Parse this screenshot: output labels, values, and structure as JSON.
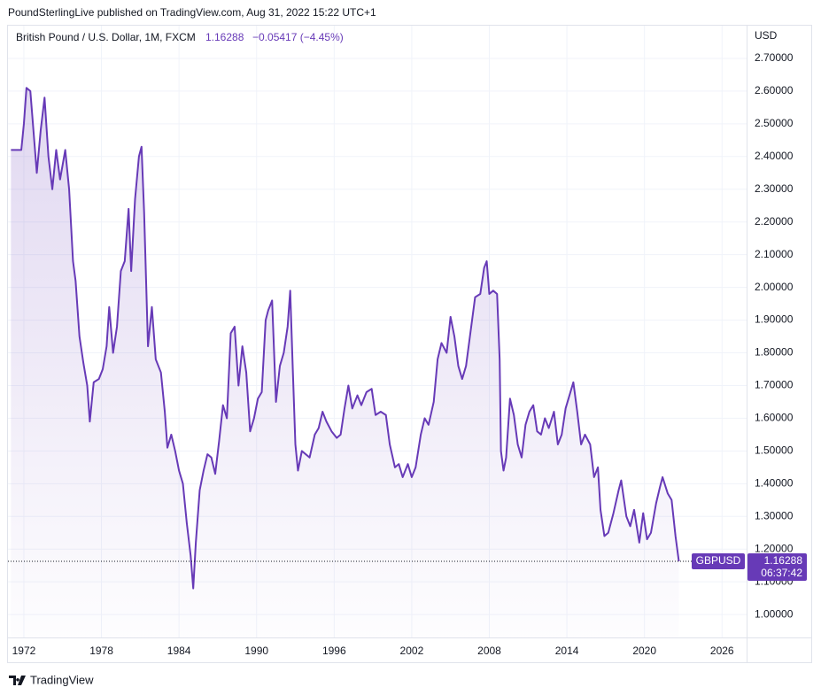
{
  "header": {
    "text": "PoundSterlingLive published on TradingView.com, Aug 31, 2022 15:22 UTC+1"
  },
  "footer": {
    "brand": "TradingView"
  },
  "chart_data": {
    "type": "area",
    "title": "British Pound / U.S. Dollar, 1M, FXCM",
    "change": "−0.05417 (−4.45%)",
    "countdown": "06:37:42",
    "y_axis_label": "USD",
    "grid": true,
    "x": [
      1971.0,
      1971.8,
      1972.0,
      1972.2,
      1972.5,
      1972.8,
      1973.0,
      1973.3,
      1973.6,
      1973.9,
      1974.2,
      1974.5,
      1974.8,
      1975.2,
      1975.5,
      1975.8,
      1976.0,
      1976.3,
      1976.6,
      1976.9,
      1977.1,
      1977.4,
      1977.8,
      1978.1,
      1978.4,
      1978.6,
      1978.9,
      1979.2,
      1979.5,
      1979.8,
      1980.1,
      1980.3,
      1980.6,
      1980.9,
      1981.1,
      1981.3,
      1981.6,
      1981.9,
      1982.2,
      1982.6,
      1982.9,
      1983.1,
      1983.4,
      1983.7,
      1984.0,
      1984.3,
      1984.6,
      1984.9,
      1985.1,
      1985.3,
      1985.6,
      1985.9,
      1986.2,
      1986.5,
      1986.8,
      1987.1,
      1987.4,
      1987.7,
      1988.0,
      1988.3,
      1988.6,
      1988.9,
      1989.2,
      1989.5,
      1989.8,
      1990.1,
      1990.4,
      1990.7,
      1990.9,
      1991.2,
      1991.5,
      1991.8,
      1992.1,
      1992.4,
      1992.6,
      1992.8,
      1993.0,
      1993.2,
      1993.5,
      1993.8,
      1994.1,
      1994.5,
      1994.8,
      1995.1,
      1995.4,
      1995.8,
      1996.2,
      1996.5,
      1996.8,
      1997.1,
      1997.4,
      1997.8,
      1998.1,
      1998.5,
      1998.9,
      1999.2,
      1999.6,
      2000.0,
      2000.3,
      2000.7,
      2001.0,
      2001.3,
      2001.7,
      2002.0,
      2002.3,
      2002.7,
      2003.0,
      2003.3,
      2003.7,
      2004.0,
      2004.3,
      2004.7,
      2005.0,
      2005.3,
      2005.6,
      2005.9,
      2006.2,
      2006.5,
      2006.9,
      2007.3,
      2007.6,
      2007.8,
      2008.0,
      2008.3,
      2008.6,
      2008.8,
      2008.9,
      2009.1,
      2009.3,
      2009.6,
      2009.9,
      2010.2,
      2010.5,
      2010.8,
      2011.1,
      2011.4,
      2011.7,
      2012.0,
      2012.3,
      2012.6,
      2013.0,
      2013.3,
      2013.6,
      2013.9,
      2014.2,
      2014.5,
      2014.8,
      2015.1,
      2015.4,
      2015.8,
      2016.1,
      2016.4,
      2016.6,
      2016.9,
      2017.2,
      2017.6,
      2018.0,
      2018.2,
      2018.6,
      2018.9,
      2019.2,
      2019.6,
      2019.9,
      2020.2,
      2020.5,
      2020.9,
      2021.2,
      2021.4,
      2021.8,
      2022.1,
      2022.4,
      2022.66
    ],
    "series": [
      {
        "name": "GBPUSD",
        "color": "#673ab7",
        "values": [
          2.42,
          2.42,
          2.5,
          2.61,
          2.6,
          2.45,
          2.35,
          2.48,
          2.58,
          2.4,
          2.3,
          2.42,
          2.33,
          2.42,
          2.3,
          2.08,
          2.02,
          1.85,
          1.77,
          1.7,
          1.59,
          1.71,
          1.72,
          1.75,
          1.82,
          1.94,
          1.8,
          1.88,
          2.05,
          2.08,
          2.24,
          2.05,
          2.27,
          2.4,
          2.43,
          2.23,
          1.82,
          1.94,
          1.78,
          1.74,
          1.62,
          1.51,
          1.55,
          1.5,
          1.44,
          1.4,
          1.28,
          1.18,
          1.08,
          1.22,
          1.38,
          1.44,
          1.49,
          1.48,
          1.43,
          1.53,
          1.64,
          1.6,
          1.86,
          1.88,
          1.7,
          1.82,
          1.74,
          1.56,
          1.6,
          1.66,
          1.68,
          1.9,
          1.93,
          1.96,
          1.65,
          1.76,
          1.8,
          1.88,
          1.99,
          1.75,
          1.52,
          1.44,
          1.5,
          1.49,
          1.48,
          1.55,
          1.57,
          1.62,
          1.59,
          1.56,
          1.54,
          1.55,
          1.63,
          1.7,
          1.63,
          1.67,
          1.64,
          1.68,
          1.69,
          1.61,
          1.62,
          1.61,
          1.52,
          1.45,
          1.46,
          1.42,
          1.46,
          1.42,
          1.45,
          1.55,
          1.6,
          1.58,
          1.65,
          1.78,
          1.83,
          1.8,
          1.91,
          1.85,
          1.76,
          1.72,
          1.76,
          1.85,
          1.97,
          1.98,
          2.06,
          2.08,
          1.98,
          1.99,
          1.98,
          1.78,
          1.5,
          1.44,
          1.48,
          1.66,
          1.61,
          1.52,
          1.48,
          1.58,
          1.62,
          1.64,
          1.56,
          1.55,
          1.6,
          1.57,
          1.62,
          1.52,
          1.55,
          1.63,
          1.67,
          1.71,
          1.62,
          1.52,
          1.55,
          1.52,
          1.42,
          1.45,
          1.32,
          1.24,
          1.25,
          1.31,
          1.38,
          1.41,
          1.3,
          1.27,
          1.32,
          1.22,
          1.31,
          1.23,
          1.25,
          1.34,
          1.39,
          1.42,
          1.37,
          1.35,
          1.24,
          1.16288
        ]
      }
    ],
    "xlim": [
      1970.77,
      2027.9
    ],
    "ylim": [
      0.93,
      2.8
    ],
    "xticks": [
      1972,
      1978,
      1984,
      1990,
      1996,
      2002,
      2008,
      2014,
      2020,
      2026
    ],
    "yticks": [
      {
        "value": 1.0,
        "label": "1.00000"
      },
      {
        "value": 1.1,
        "label": "1.10000"
      },
      {
        "value": 1.2,
        "label": "1.20000"
      },
      {
        "value": 1.3,
        "label": "1.30000"
      },
      {
        "value": 1.4,
        "label": "1.40000"
      },
      {
        "value": 1.5,
        "label": "1.50000"
      },
      {
        "value": 1.6,
        "label": "1.60000"
      },
      {
        "value": 1.7,
        "label": "1.70000"
      },
      {
        "value": 1.8,
        "label": "1.80000"
      },
      {
        "value": 1.9,
        "label": "1.90000"
      },
      {
        "value": 2.0,
        "label": "2.00000"
      },
      {
        "value": 2.1,
        "label": "2.10000"
      },
      {
        "value": 2.2,
        "label": "2.20000"
      },
      {
        "value": 2.3,
        "label": "2.30000"
      },
      {
        "value": 2.4,
        "label": "2.40000"
      },
      {
        "value": 2.5,
        "label": "2.50000"
      },
      {
        "value": 2.6,
        "label": "2.60000"
      },
      {
        "value": 2.7,
        "label": "2.70000"
      }
    ]
  }
}
